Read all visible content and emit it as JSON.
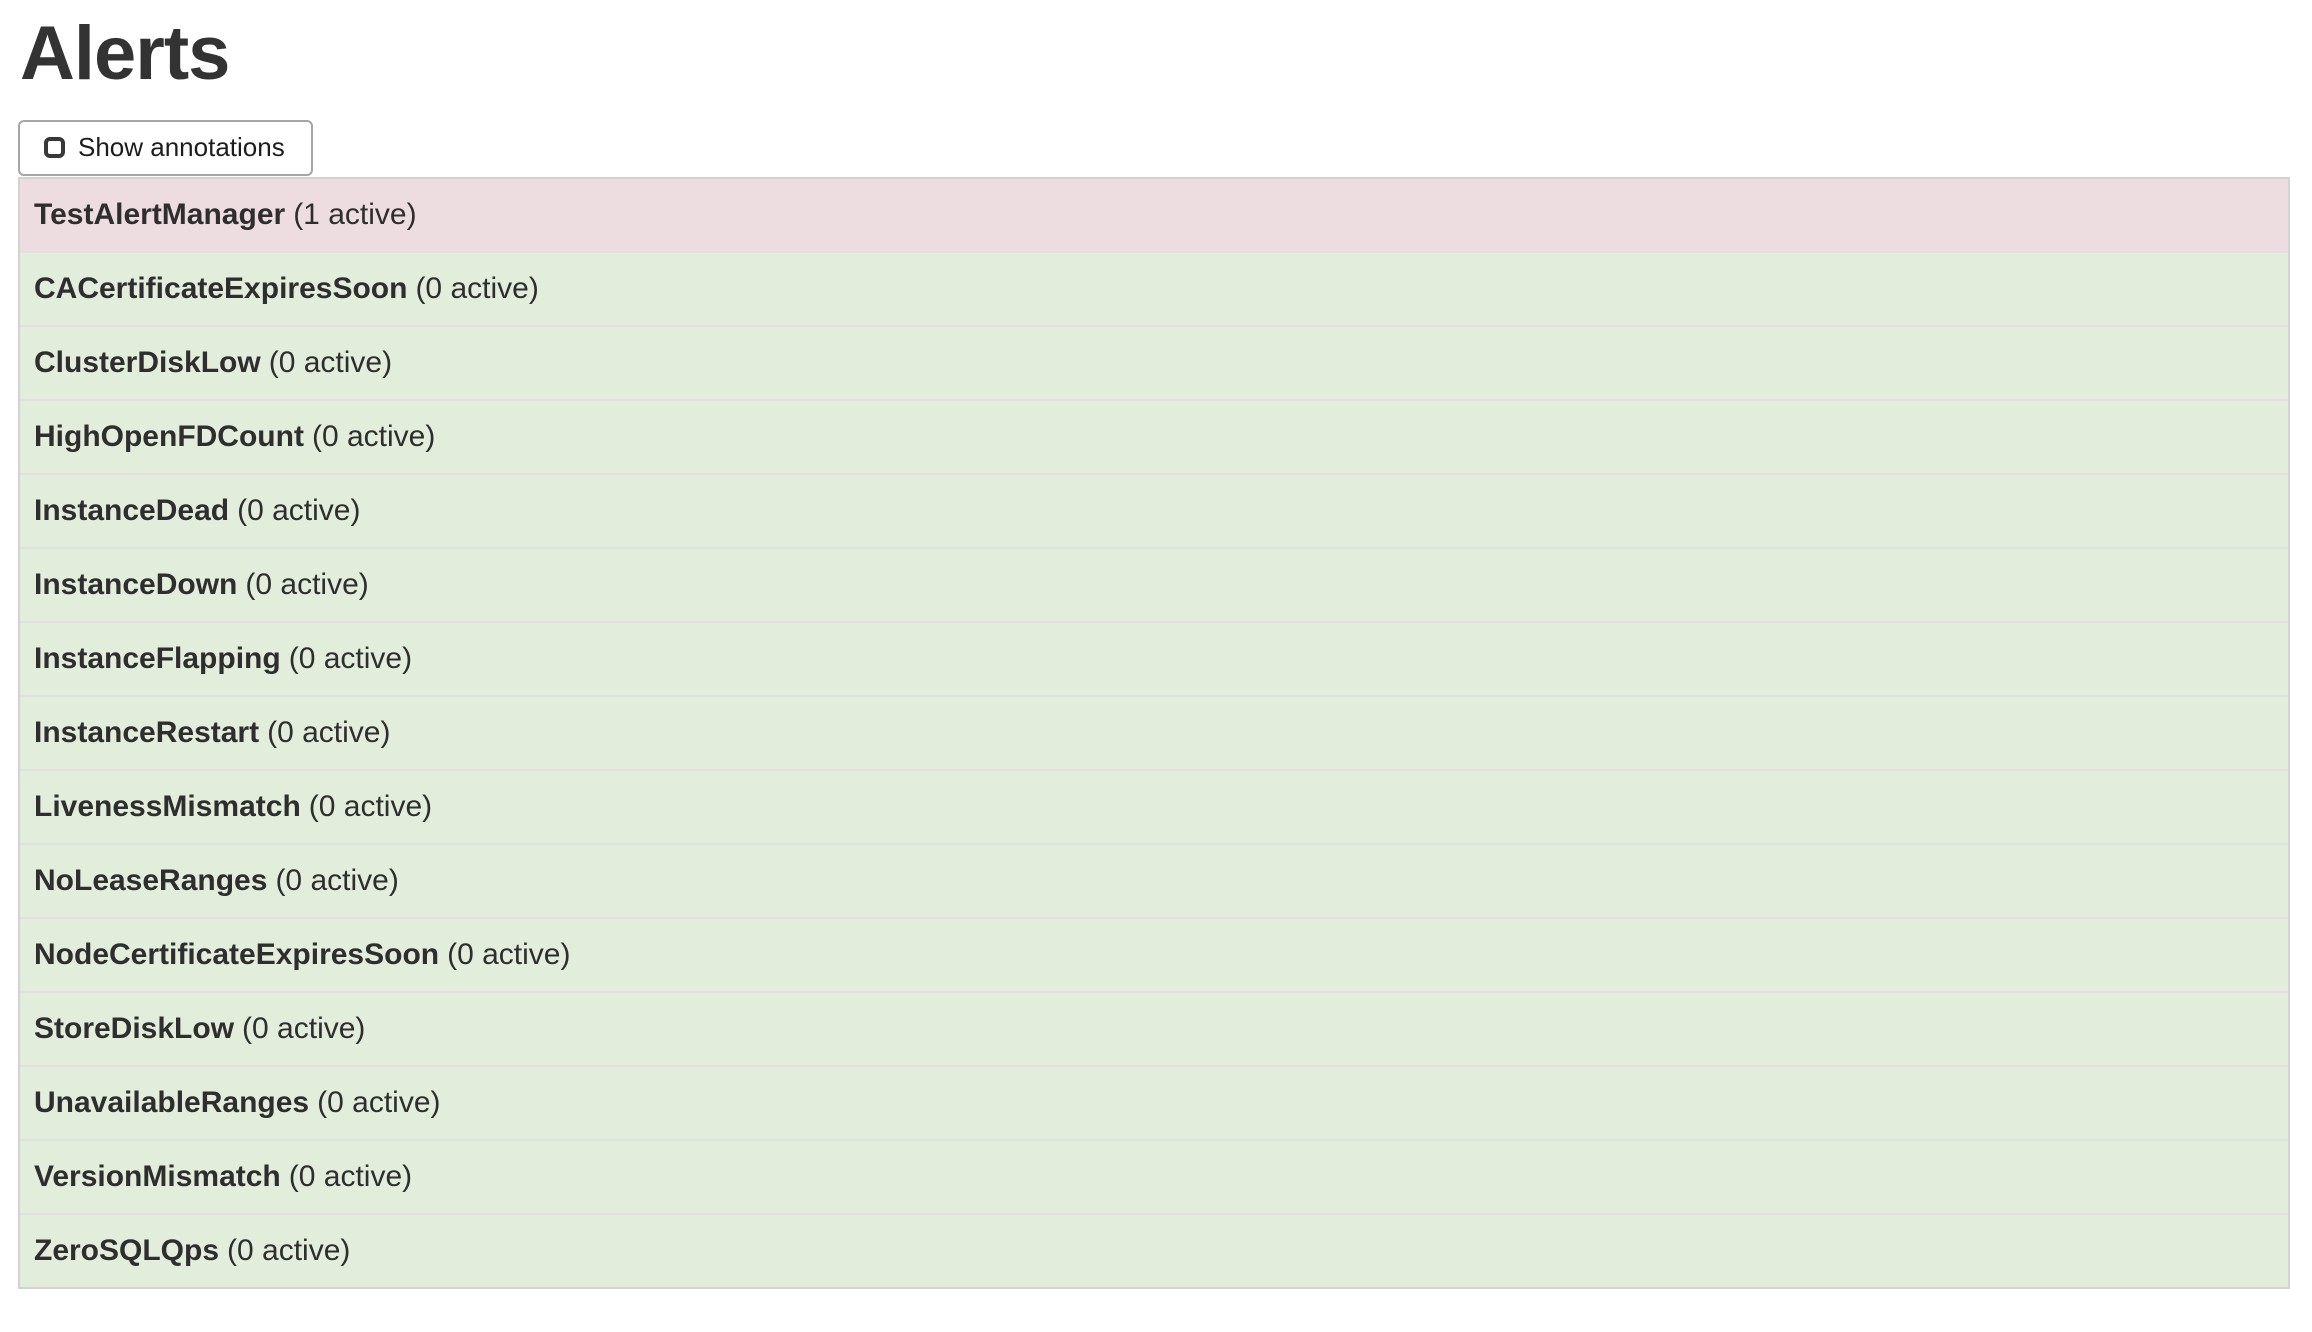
{
  "page": {
    "title": "Alerts"
  },
  "toolbar": {
    "show_annotations": {
      "label": "Show annotations",
      "checked": false
    }
  },
  "colors": {
    "firing_bg": "#eedde0",
    "inactive_bg": "#e2eedb",
    "row_separator": "#e0e0e0",
    "list_border": "#d3d3d3",
    "text": "#2e2e2e"
  },
  "alerts": [
    {
      "name": "TestAlertManager",
      "count_label": "(1 active)",
      "active": 1,
      "state": "firing"
    },
    {
      "name": "CACertificateExpiresSoon",
      "count_label": "(0 active)",
      "active": 0,
      "state": "inactive"
    },
    {
      "name": "ClusterDiskLow",
      "count_label": "(0 active)",
      "active": 0,
      "state": "inactive"
    },
    {
      "name": "HighOpenFDCount",
      "count_label": "(0 active)",
      "active": 0,
      "state": "inactive"
    },
    {
      "name": "InstanceDead",
      "count_label": "(0 active)",
      "active": 0,
      "state": "inactive"
    },
    {
      "name": "InstanceDown",
      "count_label": "(0 active)",
      "active": 0,
      "state": "inactive"
    },
    {
      "name": "InstanceFlapping",
      "count_label": "(0 active)",
      "active": 0,
      "state": "inactive"
    },
    {
      "name": "InstanceRestart",
      "count_label": "(0 active)",
      "active": 0,
      "state": "inactive"
    },
    {
      "name": "LivenessMismatch",
      "count_label": "(0 active)",
      "active": 0,
      "state": "inactive"
    },
    {
      "name": "NoLeaseRanges",
      "count_label": "(0 active)",
      "active": 0,
      "state": "inactive"
    },
    {
      "name": "NodeCertificateExpiresSoon",
      "count_label": "(0 active)",
      "active": 0,
      "state": "inactive"
    },
    {
      "name": "StoreDiskLow",
      "count_label": "(0 active)",
      "active": 0,
      "state": "inactive"
    },
    {
      "name": "UnavailableRanges",
      "count_label": "(0 active)",
      "active": 0,
      "state": "inactive"
    },
    {
      "name": "VersionMismatch",
      "count_label": "(0 active)",
      "active": 0,
      "state": "inactive"
    },
    {
      "name": "ZeroSQLQps",
      "count_label": "(0 active)",
      "active": 0,
      "state": "inactive"
    }
  ]
}
